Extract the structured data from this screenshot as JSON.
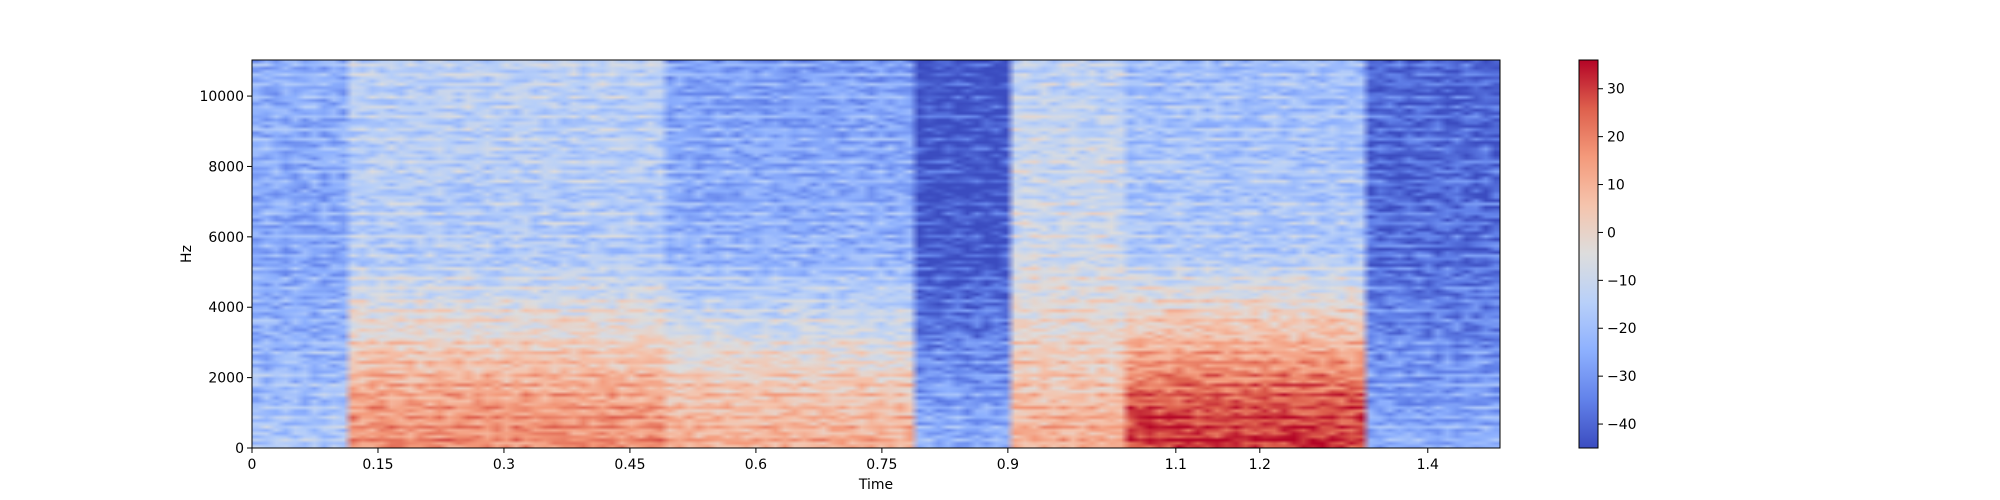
{
  "chart_data": {
    "type": "heatmap",
    "subtype": "spectrogram",
    "title": "",
    "xlabel": "Time",
    "ylabel": "Hz",
    "xlim": [
      0,
      1.486
    ],
    "ylim": [
      0,
      11025
    ],
    "x_ticks": [
      0,
      0.15,
      0.3,
      0.45,
      0.6,
      0.75,
      0.9,
      1.1,
      1.2,
      1.4
    ],
    "x_tick_labels": [
      "0",
      "0.15",
      "0.3",
      "0.45",
      "0.6",
      "0.75",
      "0.9",
      "1.1",
      "1.2",
      "1.4"
    ],
    "y_ticks": [
      0,
      2000,
      4000,
      6000,
      8000,
      10000
    ],
    "y_tick_labels": [
      "0",
      "2000",
      "4000",
      "6000",
      "8000",
      "10000"
    ],
    "colorbar": {
      "colormap": "coolwarm",
      "vmin": -45,
      "vmax": 36,
      "ticks": [
        30,
        20,
        10,
        0,
        -10,
        -20,
        -30,
        -40
      ],
      "tick_labels": [
        "30",
        "20",
        "10",
        "0",
        "−10",
        "−20",
        "−30",
        "−40"
      ]
    },
    "colors": {
      "low": "#3b4cc0",
      "mid": "#dddddd",
      "high": "#b40426"
    },
    "approx_level_db_by_segment": [
      {
        "t_start": 0.0,
        "t_end": 0.12,
        "low_freq_db": -22,
        "mid_freq_db": -28,
        "high_freq_db": -26
      },
      {
        "t_start": 0.12,
        "t_end": 0.49,
        "low_freq_db": 12,
        "mid_freq_db": -18,
        "high_freq_db": -15
      },
      {
        "t_start": 0.49,
        "t_end": 0.79,
        "low_freq_db": 5,
        "mid_freq_db": -25,
        "high_freq_db": -30
      },
      {
        "t_start": 0.79,
        "t_end": 0.9,
        "low_freq_db": -30,
        "mid_freq_db": -45,
        "high_freq_db": -45
      },
      {
        "t_start": 0.9,
        "t_end": 1.04,
        "low_freq_db": 5,
        "mid_freq_db": -10,
        "high_freq_db": -15
      },
      {
        "t_start": 1.04,
        "t_end": 1.33,
        "low_freq_db": 25,
        "mid_freq_db": -18,
        "high_freq_db": -22
      },
      {
        "t_start": 1.33,
        "t_end": 1.486,
        "low_freq_db": -30,
        "mid_freq_db": -40,
        "high_freq_db": -42
      }
    ]
  }
}
